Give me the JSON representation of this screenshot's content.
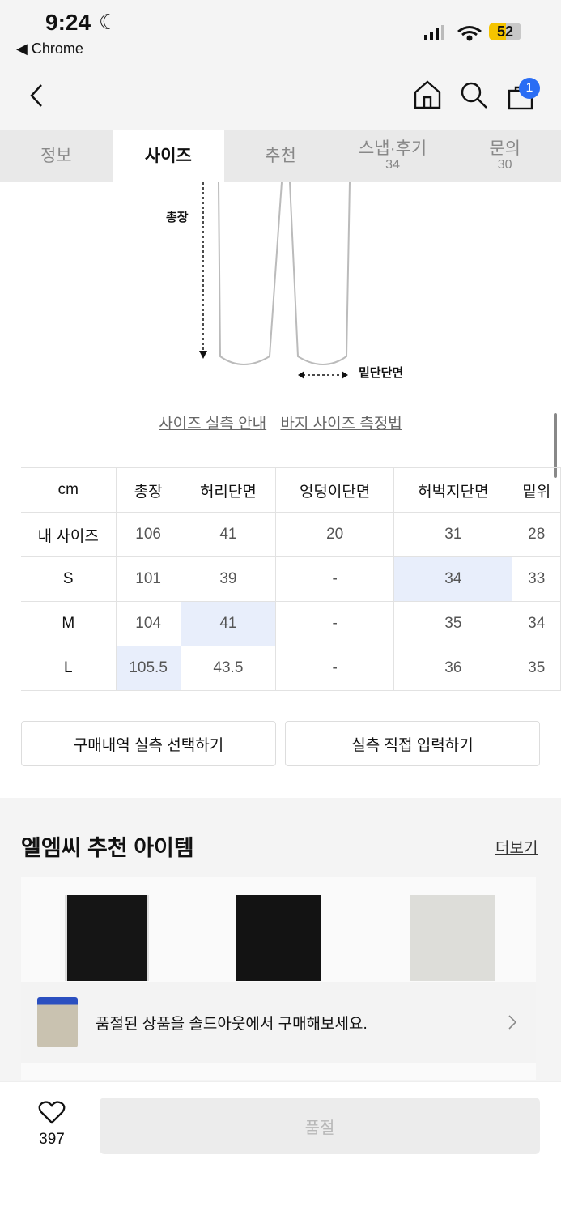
{
  "status": {
    "time": "9:24",
    "back_app": "Chrome",
    "battery": "52"
  },
  "nav": {
    "cart_count": "1"
  },
  "tabs": [
    {
      "label": "정보",
      "count": ""
    },
    {
      "label": "사이즈",
      "count": ""
    },
    {
      "label": "추천",
      "count": ""
    },
    {
      "label": "스냅·후기",
      "count": "34"
    },
    {
      "label": "문의",
      "count": "30"
    }
  ],
  "diagram": {
    "length_label": "총장",
    "hem_label": "밑단단면"
  },
  "links": {
    "size_guide": "사이즈 실측 안내",
    "measure_guide": "바지 사이즈 측정법"
  },
  "size_table": {
    "headers": [
      "cm",
      "총장",
      "허리단면",
      "엉덩이단면",
      "허벅지단면",
      "밑위"
    ],
    "rows": [
      [
        "내 사이즈",
        "106",
        "41",
        "20",
        "31",
        "28"
      ],
      [
        "S",
        "101",
        "39",
        "-",
        "34",
        "33"
      ],
      [
        "M",
        "104",
        "41",
        "-",
        "35",
        "34"
      ],
      [
        "L",
        "105.5",
        "43.5",
        "-",
        "36",
        "35"
      ]
    ],
    "highlight_color": "#e8eefb"
  },
  "buttons": {
    "select_purchase": "구매내역 실측 선택하기",
    "direct_input": "실측 직접 입력하기"
  },
  "recommend": {
    "title": "엘엠씨 추천 아이템",
    "more": "더보기"
  },
  "banner": {
    "text": "품절된 상품을 솔드아웃에서 구매해보세요."
  },
  "bottom": {
    "likes": "397",
    "buy_label": "품절"
  }
}
